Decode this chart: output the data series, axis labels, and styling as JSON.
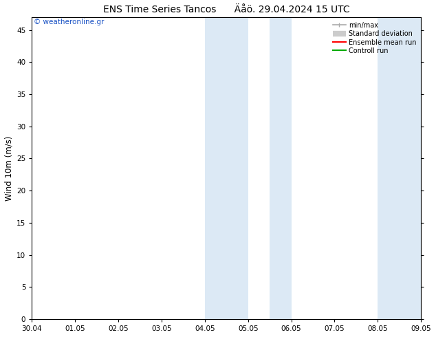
{
  "title": "ENS Time Series Tancos      Äåö. 29.04.2024 15 UTC",
  "ylabel": "Wind 10m (m/s)",
  "watermark": "© weatheronline.gr",
  "x_labels": [
    "30.04",
    "01.05",
    "02.05",
    "03.05",
    "04.05",
    "05.05",
    "06.05",
    "07.05",
    "08.05",
    "09.05"
  ],
  "x_ticks": [
    0,
    1,
    2,
    3,
    4,
    5,
    6,
    7,
    8,
    9
  ],
  "ylim": [
    0,
    47
  ],
  "yticks": [
    0,
    5,
    10,
    15,
    20,
    25,
    30,
    35,
    40,
    45
  ],
  "background_color": "#ffffff",
  "plot_bg_color": "#ffffff",
  "shaded_bands": [
    {
      "x_start": 4.0,
      "x_end": 4.5,
      "color": "#dce9f5"
    },
    {
      "x_start": 4.5,
      "x_end": 5.0,
      "color": "#dce9f5"
    },
    {
      "x_start": 5.5,
      "x_end": 6.0,
      "color": "#dce9f5"
    },
    {
      "x_start": 8.0,
      "x_end": 8.5,
      "color": "#dce9f5"
    },
    {
      "x_start": 8.5,
      "x_end": 9.0,
      "color": "#dce9f5"
    }
  ],
  "legend_items": [
    {
      "label": "min/max",
      "color": "#aaaaaa",
      "lw": 1.2
    },
    {
      "label": "Standard deviation",
      "color": "#cccccc",
      "lw": 6
    },
    {
      "label": "Ensemble mean run",
      "color": "#ff0000",
      "lw": 1.5
    },
    {
      "label": "Controll run",
      "color": "#00aa00",
      "lw": 1.5
    }
  ],
  "title_fontsize": 10,
  "tick_fontsize": 7.5,
  "label_fontsize": 8.5,
  "watermark_color": "#1a52c4",
  "grid_color": "#cccccc"
}
